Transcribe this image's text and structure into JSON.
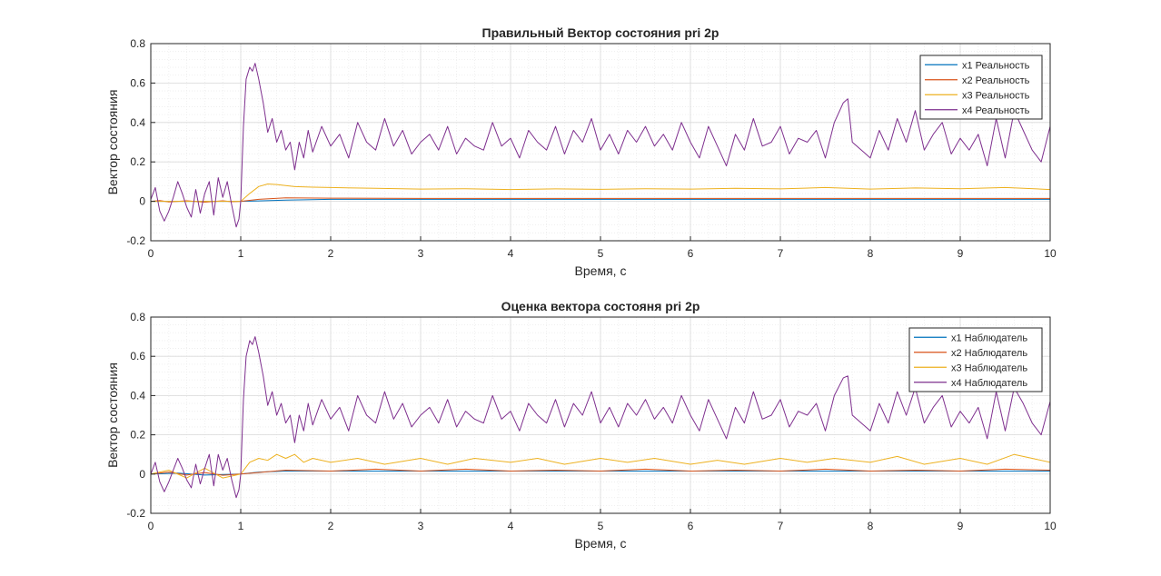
{
  "colors": {
    "x1": "#0072bd",
    "x2": "#d95319",
    "x3": "#edb120",
    "x4": "#7e2f8e",
    "grid": "#d9d9d9",
    "axes": "#262626"
  },
  "chart_data": [
    {
      "type": "line",
      "title": "Правильный Вектор состояния pri 2p",
      "xlabel": "Время, с",
      "ylabel": "Вектор состояния",
      "xlim": [
        0,
        10
      ],
      "ylim": [
        -0.2,
        0.8
      ],
      "xticks": [
        "0",
        "1",
        "2",
        "3",
        "4",
        "5",
        "6",
        "7",
        "8",
        "9",
        "10"
      ],
      "yticks": [
        "-0.2",
        "0",
        "0.2",
        "0.4",
        "0.6",
        "0.8"
      ],
      "grid": true,
      "minor_grid": true,
      "legend_position": "top-right",
      "series": [
        {
          "name": "x1 Реальность",
          "x": [
            0,
            1,
            1.2,
            1.5,
            2,
            3,
            4,
            5,
            6,
            7,
            8,
            9,
            10
          ],
          "y": [
            0,
            0,
            0.002,
            0.006,
            0.01,
            0.01,
            0.01,
            0.01,
            0.01,
            0.01,
            0.01,
            0.01,
            0.01
          ]
        },
        {
          "name": "x2 Реальность",
          "x": [
            0,
            0.1,
            0.2,
            0.4,
            0.6,
            0.8,
            0.9,
            1.0,
            1.2,
            1.5,
            2,
            3,
            4,
            5,
            6,
            7,
            8,
            9,
            10
          ],
          "y": [
            0,
            0.004,
            -0.003,
            0.003,
            -0.004,
            0.003,
            -0.002,
            0,
            0.01,
            0.018,
            0.016,
            0.015,
            0.015,
            0.015,
            0.015,
            0.015,
            0.015,
            0.015,
            0.015
          ]
        },
        {
          "name": "x3 Реальность",
          "x": [
            0,
            1,
            1.1,
            1.2,
            1.3,
            1.4,
            1.5,
            1.6,
            1.8,
            2,
            2.5,
            3,
            3.5,
            4,
            4.5,
            5,
            5.5,
            6,
            6.5,
            7,
            7.5,
            8,
            8.5,
            9,
            9.5,
            10
          ],
          "y": [
            0,
            0,
            0.04,
            0.075,
            0.088,
            0.085,
            0.08,
            0.075,
            0.072,
            0.07,
            0.066,
            0.062,
            0.064,
            0.06,
            0.063,
            0.061,
            0.064,
            0.062,
            0.066,
            0.063,
            0.07,
            0.062,
            0.068,
            0.064,
            0.07,
            0.06
          ]
        },
        {
          "name": "x4 Реальность",
          "x": [
            0,
            0.05,
            0.1,
            0.15,
            0.2,
            0.25,
            0.3,
            0.35,
            0.4,
            0.45,
            0.5,
            0.55,
            0.6,
            0.65,
            0.7,
            0.75,
            0.8,
            0.85,
            0.9,
            0.95,
            0.98,
            1.0,
            1.03,
            1.06,
            1.1,
            1.13,
            1.16,
            1.2,
            1.25,
            1.3,
            1.35,
            1.4,
            1.45,
            1.5,
            1.55,
            1.6,
            1.65,
            1.7,
            1.75,
            1.8,
            1.9,
            2.0,
            2.1,
            2.2,
            2.3,
            2.4,
            2.5,
            2.6,
            2.7,
            2.8,
            2.9,
            3.0,
            3.1,
            3.2,
            3.3,
            3.4,
            3.5,
            3.6,
            3.7,
            3.8,
            3.9,
            4.0,
            4.1,
            4.2,
            4.3,
            4.4,
            4.5,
            4.6,
            4.7,
            4.8,
            4.9,
            5.0,
            5.1,
            5.2,
            5.3,
            5.4,
            5.5,
            5.6,
            5.7,
            5.8,
            5.9,
            6.0,
            6.1,
            6.2,
            6.3,
            6.4,
            6.5,
            6.6,
            6.7,
            6.8,
            6.9,
            7.0,
            7.1,
            7.2,
            7.3,
            7.4,
            7.5,
            7.6,
            7.7,
            7.75,
            7.8,
            7.9,
            8.0,
            8.1,
            8.2,
            8.3,
            8.4,
            8.5,
            8.6,
            8.7,
            8.8,
            8.9,
            9.0,
            9.1,
            9.2,
            9.3,
            9.4,
            9.5,
            9.6,
            9.7,
            9.8,
            9.9,
            10.0
          ],
          "y": [
            0.01,
            0.07,
            -0.05,
            -0.1,
            -0.05,
            0.02,
            0.1,
            0.04,
            -0.03,
            -0.08,
            0.06,
            -0.06,
            0.04,
            0.1,
            -0.07,
            0.12,
            0.02,
            0.1,
            -0.02,
            -0.13,
            -0.09,
            0.0,
            0.38,
            0.62,
            0.68,
            0.66,
            0.7,
            0.62,
            0.5,
            0.35,
            0.42,
            0.3,
            0.36,
            0.26,
            0.3,
            0.16,
            0.3,
            0.22,
            0.36,
            0.25,
            0.38,
            0.28,
            0.34,
            0.22,
            0.4,
            0.3,
            0.26,
            0.42,
            0.28,
            0.36,
            0.24,
            0.3,
            0.34,
            0.26,
            0.38,
            0.24,
            0.32,
            0.28,
            0.26,
            0.4,
            0.28,
            0.32,
            0.22,
            0.36,
            0.3,
            0.26,
            0.38,
            0.24,
            0.36,
            0.3,
            0.42,
            0.26,
            0.34,
            0.24,
            0.36,
            0.3,
            0.38,
            0.28,
            0.34,
            0.26,
            0.4,
            0.3,
            0.22,
            0.38,
            0.28,
            0.18,
            0.34,
            0.26,
            0.42,
            0.28,
            0.3,
            0.38,
            0.24,
            0.32,
            0.3,
            0.36,
            0.22,
            0.4,
            0.5,
            0.52,
            0.3,
            0.26,
            0.22,
            0.36,
            0.26,
            0.42,
            0.3,
            0.46,
            0.26,
            0.34,
            0.4,
            0.24,
            0.32,
            0.26,
            0.34,
            0.18,
            0.42,
            0.22,
            0.46,
            0.36,
            0.26,
            0.2,
            0.38
          ]
        }
      ]
    },
    {
      "type": "line",
      "title": "Оценка вектора состояня pri 2p",
      "xlabel": "Время, с",
      "ylabel": "Вектор состояния",
      "xlim": [
        0,
        10
      ],
      "ylim": [
        -0.2,
        0.8
      ],
      "xticks": [
        "0",
        "1",
        "2",
        "3",
        "4",
        "5",
        "6",
        "7",
        "8",
        "9",
        "10"
      ],
      "yticks": [
        "-0.2",
        "0",
        "0.2",
        "0.4",
        "0.6",
        "0.8"
      ],
      "grid": true,
      "minor_grid": true,
      "legend_position": "top-right",
      "series": [
        {
          "name": "x1 Наблюдатель",
          "x": [
            0,
            0.3,
            0.6,
            1.0,
            1.2,
            1.5,
            2,
            3,
            4,
            5,
            6,
            7,
            8,
            9,
            10
          ],
          "y": [
            0,
            0.005,
            -0.005,
            0,
            0.01,
            0.015,
            0.015,
            0.015,
            0.015,
            0.015,
            0.015,
            0.015,
            0.015,
            0.015,
            0.015
          ]
        },
        {
          "name": "x2 Наблюдатель",
          "x": [
            0,
            0.2,
            0.4,
            0.6,
            0.8,
            1.0,
            1.5,
            2,
            2.5,
            3,
            3.5,
            4,
            4.5,
            5,
            5.5,
            6,
            6.5,
            7,
            7.5,
            8,
            8.5,
            9,
            9.5,
            10
          ],
          "y": [
            0,
            0.01,
            -0.005,
            0.008,
            -0.006,
            0,
            0.02,
            0.015,
            0.025,
            0.015,
            0.025,
            0.015,
            0.02,
            0.015,
            0.025,
            0.015,
            0.02,
            0.015,
            0.025,
            0.015,
            0.02,
            0.015,
            0.025,
            0.02
          ]
        },
        {
          "name": "x3 Наблюдатель",
          "x": [
            0,
            0.2,
            0.4,
            0.6,
            0.8,
            1.0,
            1.1,
            1.2,
            1.3,
            1.4,
            1.5,
            1.6,
            1.7,
            1.8,
            2.0,
            2.3,
            2.6,
            3.0,
            3.3,
            3.6,
            4.0,
            4.3,
            4.6,
            5.0,
            5.3,
            5.6,
            6.0,
            6.3,
            6.6,
            7.0,
            7.3,
            7.6,
            8.0,
            8.3,
            8.6,
            9.0,
            9.3,
            9.6,
            9.8,
            10.0
          ],
          "y": [
            0,
            0.02,
            -0.02,
            0.03,
            -0.02,
            0,
            0.06,
            0.08,
            0.07,
            0.1,
            0.08,
            0.1,
            0.06,
            0.08,
            0.06,
            0.08,
            0.05,
            0.08,
            0.05,
            0.08,
            0.06,
            0.08,
            0.05,
            0.08,
            0.06,
            0.08,
            0.05,
            0.07,
            0.05,
            0.08,
            0.06,
            0.08,
            0.06,
            0.09,
            0.05,
            0.08,
            0.05,
            0.1,
            0.08,
            0.06
          ]
        },
        {
          "name": "x4 Наблюдатель",
          "x": [
            0,
            0.05,
            0.1,
            0.15,
            0.2,
            0.25,
            0.3,
            0.35,
            0.4,
            0.45,
            0.5,
            0.55,
            0.6,
            0.65,
            0.7,
            0.75,
            0.8,
            0.85,
            0.9,
            0.95,
            0.98,
            1.0,
            1.03,
            1.06,
            1.1,
            1.13,
            1.16,
            1.2,
            1.25,
            1.3,
            1.35,
            1.4,
            1.45,
            1.5,
            1.55,
            1.6,
            1.65,
            1.7,
            1.75,
            1.8,
            1.9,
            2.0,
            2.1,
            2.2,
            2.3,
            2.4,
            2.5,
            2.6,
            2.7,
            2.8,
            2.9,
            3.0,
            3.1,
            3.2,
            3.3,
            3.4,
            3.5,
            3.6,
            3.7,
            3.8,
            3.9,
            4.0,
            4.1,
            4.2,
            4.3,
            4.4,
            4.5,
            4.6,
            4.7,
            4.8,
            4.9,
            5.0,
            5.1,
            5.2,
            5.3,
            5.4,
            5.5,
            5.6,
            5.7,
            5.8,
            5.9,
            6.0,
            6.1,
            6.2,
            6.3,
            6.4,
            6.5,
            6.6,
            6.7,
            6.8,
            6.9,
            7.0,
            7.1,
            7.2,
            7.3,
            7.4,
            7.5,
            7.6,
            7.7,
            7.75,
            7.8,
            7.9,
            8.0,
            8.1,
            8.2,
            8.3,
            8.4,
            8.5,
            8.6,
            8.7,
            8.8,
            8.9,
            9.0,
            9.1,
            9.2,
            9.3,
            9.4,
            9.5,
            9.6,
            9.7,
            9.8,
            9.9,
            10.0
          ],
          "y": [
            0.0,
            0.06,
            -0.04,
            -0.09,
            -0.04,
            0.02,
            0.08,
            0.03,
            -0.03,
            -0.07,
            0.05,
            -0.05,
            0.03,
            0.1,
            -0.06,
            0.1,
            0.02,
            0.08,
            -0.03,
            -0.12,
            -0.08,
            0.0,
            0.38,
            0.6,
            0.68,
            0.66,
            0.7,
            0.62,
            0.5,
            0.35,
            0.42,
            0.3,
            0.36,
            0.26,
            0.3,
            0.16,
            0.3,
            0.22,
            0.36,
            0.25,
            0.38,
            0.28,
            0.34,
            0.22,
            0.4,
            0.3,
            0.26,
            0.42,
            0.28,
            0.36,
            0.24,
            0.3,
            0.34,
            0.26,
            0.38,
            0.24,
            0.32,
            0.28,
            0.26,
            0.4,
            0.28,
            0.32,
            0.22,
            0.36,
            0.3,
            0.26,
            0.38,
            0.24,
            0.36,
            0.3,
            0.42,
            0.26,
            0.34,
            0.24,
            0.36,
            0.3,
            0.38,
            0.28,
            0.34,
            0.26,
            0.4,
            0.3,
            0.22,
            0.38,
            0.28,
            0.18,
            0.34,
            0.26,
            0.42,
            0.28,
            0.3,
            0.38,
            0.24,
            0.32,
            0.3,
            0.36,
            0.22,
            0.4,
            0.49,
            0.5,
            0.3,
            0.26,
            0.22,
            0.36,
            0.26,
            0.42,
            0.3,
            0.44,
            0.26,
            0.34,
            0.4,
            0.24,
            0.32,
            0.26,
            0.34,
            0.18,
            0.42,
            0.22,
            0.44,
            0.36,
            0.26,
            0.2,
            0.37
          ]
        }
      ]
    }
  ]
}
